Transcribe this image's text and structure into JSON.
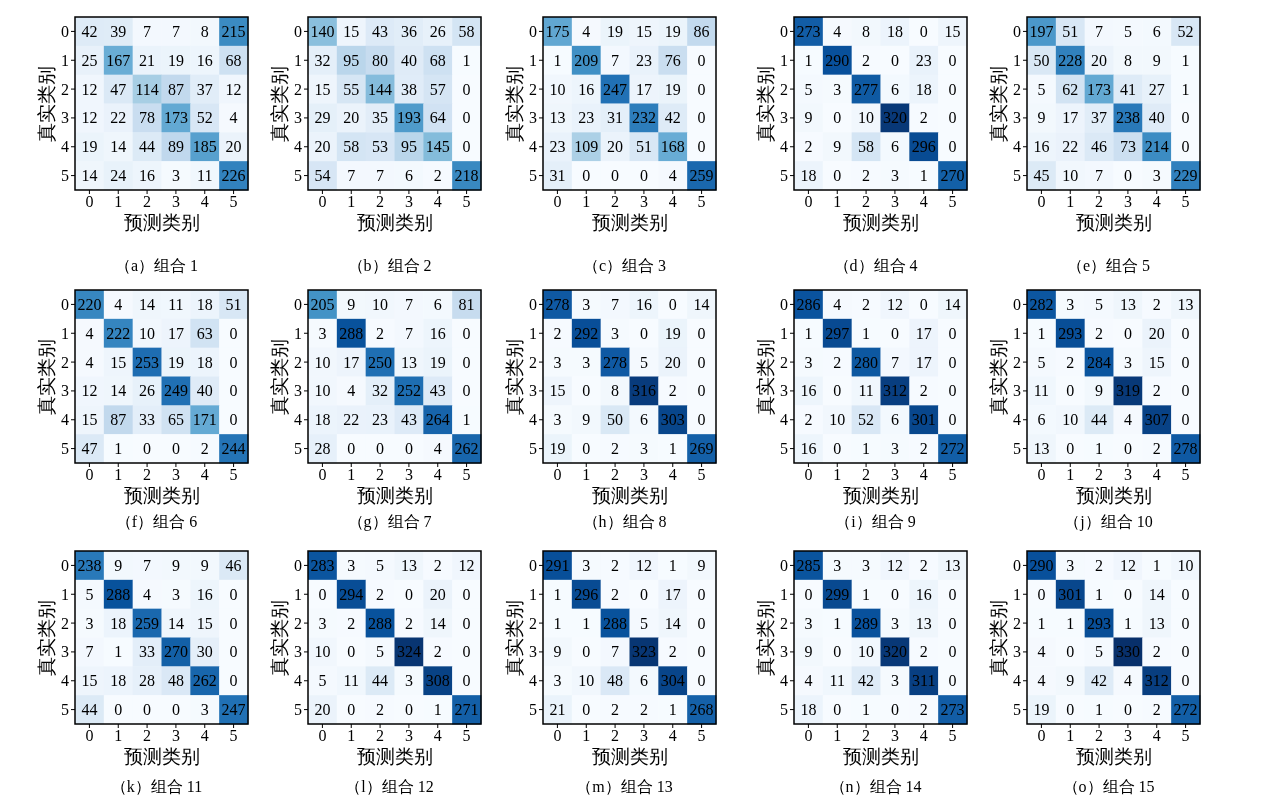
{
  "chart_data": [
    {
      "type": "heatmap",
      "title": "（a）组合 1",
      "xlabel": "预测类别",
      "ylabel": "真实类别",
      "categories": [
        "0",
        "1",
        "2",
        "3",
        "4",
        "5"
      ],
      "y_categories": [
        "0",
        "1",
        "2",
        "3",
        "4",
        "5"
      ],
      "data_labels": true,
      "cells": [
        [
          42,
          39,
          7,
          7,
          8,
          215
        ],
        [
          25,
          167,
          21,
          19,
          16,
          68
        ],
        [
          12,
          47,
          114,
          87,
          37,
          12
        ],
        [
          12,
          22,
          78,
          173,
          52,
          4
        ],
        [
          19,
          14,
          44,
          89,
          185,
          20
        ],
        [
          14,
          24,
          16,
          3,
          11,
          226
        ]
      ]
    },
    {
      "type": "heatmap",
      "title": "（b）组合 2",
      "xlabel": "预测类别",
      "ylabel": "真实类别",
      "categories": [
        "0",
        "1",
        "2",
        "3",
        "4",
        "5"
      ],
      "y_categories": [
        "0",
        "1",
        "2",
        "3",
        "4",
        "5"
      ],
      "data_labels": true,
      "cells": [
        [
          140,
          15,
          43,
          36,
          26,
          58
        ],
        [
          32,
          95,
          80,
          40,
          68,
          1
        ],
        [
          15,
          55,
          144,
          38,
          57,
          0
        ],
        [
          29,
          20,
          35,
          193,
          64,
          0
        ],
        [
          20,
          58,
          53,
          95,
          145,
          0
        ],
        [
          54,
          7,
          7,
          6,
          2,
          218
        ]
      ]
    },
    {
      "type": "heatmap",
      "title": "（c）组合 3",
      "xlabel": "预测类别",
      "ylabel": "真实类别",
      "categories": [
        "0",
        "1",
        "2",
        "3",
        "4",
        "5"
      ],
      "y_categories": [
        "0",
        "1",
        "2",
        "3",
        "4",
        "5"
      ],
      "data_labels": true,
      "cells": [
        [
          175,
          4,
          19,
          15,
          19,
          86
        ],
        [
          1,
          209,
          7,
          23,
          76,
          0
        ],
        [
          10,
          16,
          247,
          17,
          19,
          0
        ],
        [
          13,
          23,
          31,
          232,
          42,
          0
        ],
        [
          23,
          109,
          20,
          51,
          168,
          0
        ],
        [
          31,
          0,
          0,
          0,
          4,
          259
        ]
      ]
    },
    {
      "type": "heatmap",
      "title": "（d）组合 4",
      "xlabel": "预测类别",
      "ylabel": "真实类别",
      "categories": [
        "0",
        "1",
        "2",
        "3",
        "4",
        "5"
      ],
      "y_categories": [
        "0",
        "1",
        "2",
        "3",
        "4",
        "5"
      ],
      "data_labels": true,
      "cells": [
        [
          273,
          4,
          8,
          18,
          0,
          15
        ],
        [
          1,
          290,
          2,
          0,
          23,
          0
        ],
        [
          5,
          3,
          277,
          6,
          18,
          0
        ],
        [
          9,
          0,
          10,
          320,
          2,
          0
        ],
        [
          2,
          9,
          58,
          6,
          296,
          0
        ],
        [
          18,
          0,
          2,
          3,
          1,
          270
        ]
      ]
    },
    {
      "type": "heatmap",
      "title": "（e）组合 5",
      "xlabel": "预测类别",
      "ylabel": "真实类别",
      "categories": [
        "0",
        "1",
        "2",
        "3",
        "4",
        "5"
      ],
      "y_categories": [
        "0",
        "1",
        "2",
        "3",
        "4",
        "5"
      ],
      "data_labels": true,
      "cells": [
        [
          197,
          51,
          7,
          5,
          6,
          52
        ],
        [
          50,
          228,
          20,
          8,
          9,
          1
        ],
        [
          5,
          62,
          173,
          41,
          27,
          1
        ],
        [
          9,
          17,
          37,
          238,
          40,
          0
        ],
        [
          16,
          22,
          46,
          73,
          214,
          0
        ],
        [
          45,
          10,
          7,
          0,
          3,
          229
        ]
      ]
    },
    {
      "type": "heatmap",
      "title": "（f）组合 6",
      "xlabel": "预测类别",
      "ylabel": "真实类别",
      "categories": [
        "0",
        "1",
        "2",
        "3",
        "4",
        "5"
      ],
      "y_categories": [
        "0",
        "1",
        "2",
        "3",
        "4",
        "5"
      ],
      "data_labels": true,
      "cells": [
        [
          220,
          4,
          14,
          11,
          18,
          51
        ],
        [
          4,
          222,
          10,
          17,
          63,
          0
        ],
        [
          4,
          15,
          253,
          19,
          18,
          0
        ],
        [
          12,
          14,
          26,
          249,
          40,
          0
        ],
        [
          15,
          87,
          33,
          65,
          171,
          0
        ],
        [
          47,
          1,
          0,
          0,
          2,
          244
        ]
      ]
    },
    {
      "type": "heatmap",
      "title": "（g）组合 7",
      "xlabel": "预测类别",
      "ylabel": "真实类别",
      "categories": [
        "0",
        "1",
        "2",
        "3",
        "4",
        "5"
      ],
      "y_categories": [
        "0",
        "1",
        "2",
        "3",
        "4",
        "5"
      ],
      "data_labels": true,
      "cells": [
        [
          205,
          9,
          10,
          7,
          6,
          81
        ],
        [
          3,
          288,
          2,
          7,
          16,
          0
        ],
        [
          10,
          17,
          250,
          13,
          19,
          0
        ],
        [
          10,
          4,
          32,
          252,
          43,
          0
        ],
        [
          18,
          22,
          23,
          43,
          264,
          1
        ],
        [
          28,
          0,
          0,
          0,
          4,
          262
        ]
      ]
    },
    {
      "type": "heatmap",
      "title": "（h）组合 8",
      "xlabel": "预测类别",
      "ylabel": "真实类别",
      "categories": [
        "0",
        "1",
        "2",
        "3",
        "4",
        "5"
      ],
      "y_categories": [
        "0",
        "1",
        "2",
        "3",
        "4",
        "5"
      ],
      "data_labels": true,
      "cells": [
        [
          278,
          3,
          7,
          16,
          0,
          14
        ],
        [
          2,
          292,
          3,
          0,
          19,
          0
        ],
        [
          3,
          3,
          278,
          5,
          20,
          0
        ],
        [
          15,
          0,
          8,
          316,
          2,
          0
        ],
        [
          3,
          9,
          50,
          6,
          303,
          0
        ],
        [
          19,
          0,
          2,
          3,
          1,
          269
        ]
      ]
    },
    {
      "type": "heatmap",
      "title": "（i）组合 9",
      "xlabel": "预测类别",
      "ylabel": "真实类别",
      "categories": [
        "0",
        "1",
        "2",
        "3",
        "4",
        "5"
      ],
      "y_categories": [
        "0",
        "1",
        "2",
        "3",
        "4",
        "5"
      ],
      "data_labels": true,
      "cells": [
        [
          286,
          4,
          2,
          12,
          0,
          14
        ],
        [
          1,
          297,
          1,
          0,
          17,
          0
        ],
        [
          3,
          2,
          280,
          7,
          17,
          0
        ],
        [
          16,
          0,
          11,
          312,
          2,
          0
        ],
        [
          2,
          10,
          52,
          6,
          301,
          0
        ],
        [
          16,
          0,
          1,
          3,
          2,
          272
        ]
      ]
    },
    {
      "type": "heatmap",
      "title": "（j）组合 10",
      "xlabel": "预测类别",
      "ylabel": "真实类别",
      "categories": [
        "0",
        "1",
        "2",
        "3",
        "4",
        "5"
      ],
      "y_categories": [
        "0",
        "1",
        "2",
        "3",
        "4",
        "5"
      ],
      "data_labels": true,
      "cells": [
        [
          282,
          3,
          5,
          13,
          2,
          13
        ],
        [
          1,
          293,
          2,
          0,
          20,
          0
        ],
        [
          5,
          2,
          284,
          3,
          15,
          0
        ],
        [
          11,
          0,
          9,
          319,
          2,
          0
        ],
        [
          6,
          10,
          44,
          4,
          307,
          0
        ],
        [
          13,
          0,
          1,
          0,
          2,
          278
        ]
      ]
    },
    {
      "type": "heatmap",
      "title": "（k）组合 11",
      "xlabel": "预测类别",
      "ylabel": "真实类别",
      "categories": [
        "0",
        "1",
        "2",
        "3",
        "4",
        "5"
      ],
      "y_categories": [
        "0",
        "1",
        "2",
        "3",
        "4",
        "5"
      ],
      "data_labels": true,
      "cells": [
        [
          238,
          9,
          7,
          9,
          9,
          46
        ],
        [
          5,
          288,
          4,
          3,
          16,
          0
        ],
        [
          3,
          18,
          259,
          14,
          15,
          0
        ],
        [
          7,
          1,
          33,
          270,
          30,
          0
        ],
        [
          15,
          18,
          28,
          48,
          262,
          0
        ],
        [
          44,
          0,
          0,
          0,
          3,
          247
        ]
      ]
    },
    {
      "type": "heatmap",
      "title": "（l）组合 12",
      "xlabel": "预测类别",
      "ylabel": "真实类别",
      "categories": [
        "0",
        "1",
        "2",
        "3",
        "4",
        "5"
      ],
      "y_categories": [
        "0",
        "1",
        "2",
        "3",
        "4",
        "5"
      ],
      "data_labels": true,
      "cells": [
        [
          283,
          3,
          5,
          13,
          2,
          12
        ],
        [
          0,
          294,
          2,
          0,
          20,
          0
        ],
        [
          3,
          2,
          288,
          2,
          14,
          0
        ],
        [
          10,
          0,
          5,
          324,
          2,
          0
        ],
        [
          5,
          11,
          44,
          3,
          308,
          0
        ],
        [
          20,
          0,
          2,
          0,
          1,
          271
        ]
      ]
    },
    {
      "type": "heatmap",
      "title": "（m）组合 13",
      "xlabel": "预测类别",
      "ylabel": "真实类别",
      "categories": [
        "0",
        "1",
        "2",
        "3",
        "4",
        "5"
      ],
      "y_categories": [
        "0",
        "1",
        "2",
        "3",
        "4",
        "5"
      ],
      "data_labels": true,
      "cells": [
        [
          291,
          3,
          2,
          12,
          1,
          9
        ],
        [
          1,
          296,
          2,
          0,
          17,
          0
        ],
        [
          1,
          1,
          288,
          5,
          14,
          0
        ],
        [
          9,
          0,
          7,
          323,
          2,
          0
        ],
        [
          3,
          10,
          48,
          6,
          304,
          0
        ],
        [
          21,
          0,
          2,
          2,
          1,
          268
        ]
      ]
    },
    {
      "type": "heatmap",
      "title": "（n）组合 14",
      "xlabel": "预测类别",
      "ylabel": "真实类别",
      "categories": [
        "0",
        "1",
        "2",
        "3",
        "4",
        "5"
      ],
      "y_categories": [
        "0",
        "1",
        "2",
        "3",
        "4",
        "5"
      ],
      "data_labels": true,
      "cells": [
        [
          285,
          3,
          3,
          12,
          2,
          13
        ],
        [
          0,
          299,
          1,
          0,
          16,
          0
        ],
        [
          3,
          1,
          289,
          3,
          13,
          0
        ],
        [
          9,
          0,
          10,
          320,
          2,
          0
        ],
        [
          4,
          11,
          42,
          3,
          311,
          0
        ],
        [
          18,
          0,
          1,
          0,
          2,
          273
        ]
      ]
    },
    {
      "type": "heatmap",
      "title": "（o）组合 15",
      "xlabel": "预测类别",
      "ylabel": "真实类别",
      "categories": [
        "0",
        "1",
        "2",
        "3",
        "4",
        "5"
      ],
      "y_categories": [
        "0",
        "1",
        "2",
        "3",
        "4",
        "5"
      ],
      "data_labels": true,
      "cells": [
        [
          290,
          3,
          2,
          12,
          1,
          10
        ],
        [
          0,
          301,
          1,
          0,
          14,
          0
        ],
        [
          1,
          1,
          293,
          1,
          13,
          0
        ],
        [
          4,
          0,
          5,
          330,
          2,
          0
        ],
        [
          4,
          9,
          42,
          4,
          312,
          0
        ],
        [
          19,
          0,
          1,
          0,
          2,
          272
        ]
      ]
    }
  ]
}
